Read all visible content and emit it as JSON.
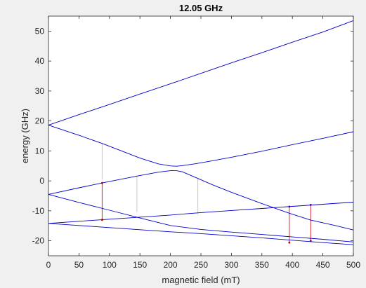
{
  "chart_data": {
    "type": "line",
    "title": "12.05 GHz",
    "xlabel": "magnetic field (mT)",
    "ylabel": "energy (GHz)",
    "xlim": [
      0,
      500
    ],
    "ylim": [
      -25,
      55
    ],
    "xticks": [
      0,
      50,
      100,
      150,
      200,
      250,
      300,
      350,
      400,
      450,
      500
    ],
    "yticks": [
      -20,
      -10,
      0,
      10,
      20,
      30,
      40,
      50
    ],
    "grid": false,
    "legend": "none",
    "colors": {
      "levels": "#0000cc",
      "allowed_transition": "#e8202a",
      "weak_transition": "#c8c8c8",
      "axes_background": "#ffffff",
      "figure_background": "#f0f0f0",
      "marker": "#cc0000"
    },
    "series": [
      {
        "x": [
          0,
          50,
          100,
          150,
          200,
          250,
          300,
          350,
          400,
          450,
          500
        ],
        "y": [
          18.6,
          22.1,
          25.5,
          29.0,
          32.4,
          35.9,
          39.4,
          42.8,
          46.3,
          49.7,
          53.5
        ]
      },
      {
        "x": [
          0,
          50,
          88,
          120,
          150,
          180,
          200,
          210,
          220,
          240,
          260,
          300,
          350,
          400,
          450,
          500
        ],
        "y": [
          18.6,
          15.2,
          12.5,
          10.0,
          7.6,
          5.7,
          5.0,
          4.9,
          5.1,
          5.7,
          6.4,
          7.9,
          9.9,
          12.1,
          14.2,
          16.4
        ]
      },
      {
        "x": [
          0,
          50,
          88,
          120,
          145,
          180,
          200,
          210,
          220,
          245,
          270,
          300,
          350,
          395,
          430,
          470,
          500
        ],
        "y": [
          -4.5,
          -2.3,
          -0.7,
          0.6,
          1.6,
          2.9,
          3.4,
          3.4,
          3.0,
          0.8,
          -1.4,
          -3.8,
          -7.6,
          -10.8,
          -13.1,
          -14.9,
          -16.4
        ]
      },
      {
        "x": [
          0,
          50,
          100,
          150,
          200,
          250,
          300,
          350,
          400,
          450,
          500
        ],
        "y": [
          -4.5,
          -7.2,
          -9.8,
          -12.4,
          -14.9,
          -16.2,
          -17.1,
          -17.9,
          -18.7,
          -19.5,
          -20.4
        ]
      },
      {
        "x": [
          0,
          50,
          100,
          150,
          200,
          250,
          300,
          350,
          400,
          450,
          500
        ],
        "y": [
          -14.2,
          -13.5,
          -12.8,
          -12.1,
          -11.4,
          -10.6,
          -9.9,
          -9.2,
          -8.5,
          -7.8,
          -7.1
        ]
      },
      {
        "x": [
          0,
          50,
          100,
          150,
          200,
          250,
          300,
          350,
          400,
          450,
          500
        ],
        "y": [
          -14.2,
          -14.9,
          -15.6,
          -16.3,
          -17.0,
          -17.6,
          -18.3,
          -19.0,
          -19.8,
          -20.6,
          -21.3
        ]
      }
    ],
    "transitions": [
      {
        "x": 88,
        "y1": 12.5,
        "y2": 0.5,
        "kind": "weak"
      },
      {
        "x": 88,
        "y1": -0.7,
        "y2": -13.0,
        "kind": "allowed"
      },
      {
        "x": 145,
        "y1": 1.6,
        "y2": -10.4,
        "kind": "weak"
      },
      {
        "x": 245,
        "y1": 0.8,
        "y2": -11.2,
        "kind": "weak"
      },
      {
        "x": 395,
        "y1": -8.6,
        "y2": -20.6,
        "kind": "allowed"
      },
      {
        "x": 430,
        "y1": -8.0,
        "y2": -20.0,
        "kind": "allowed"
      }
    ]
  }
}
